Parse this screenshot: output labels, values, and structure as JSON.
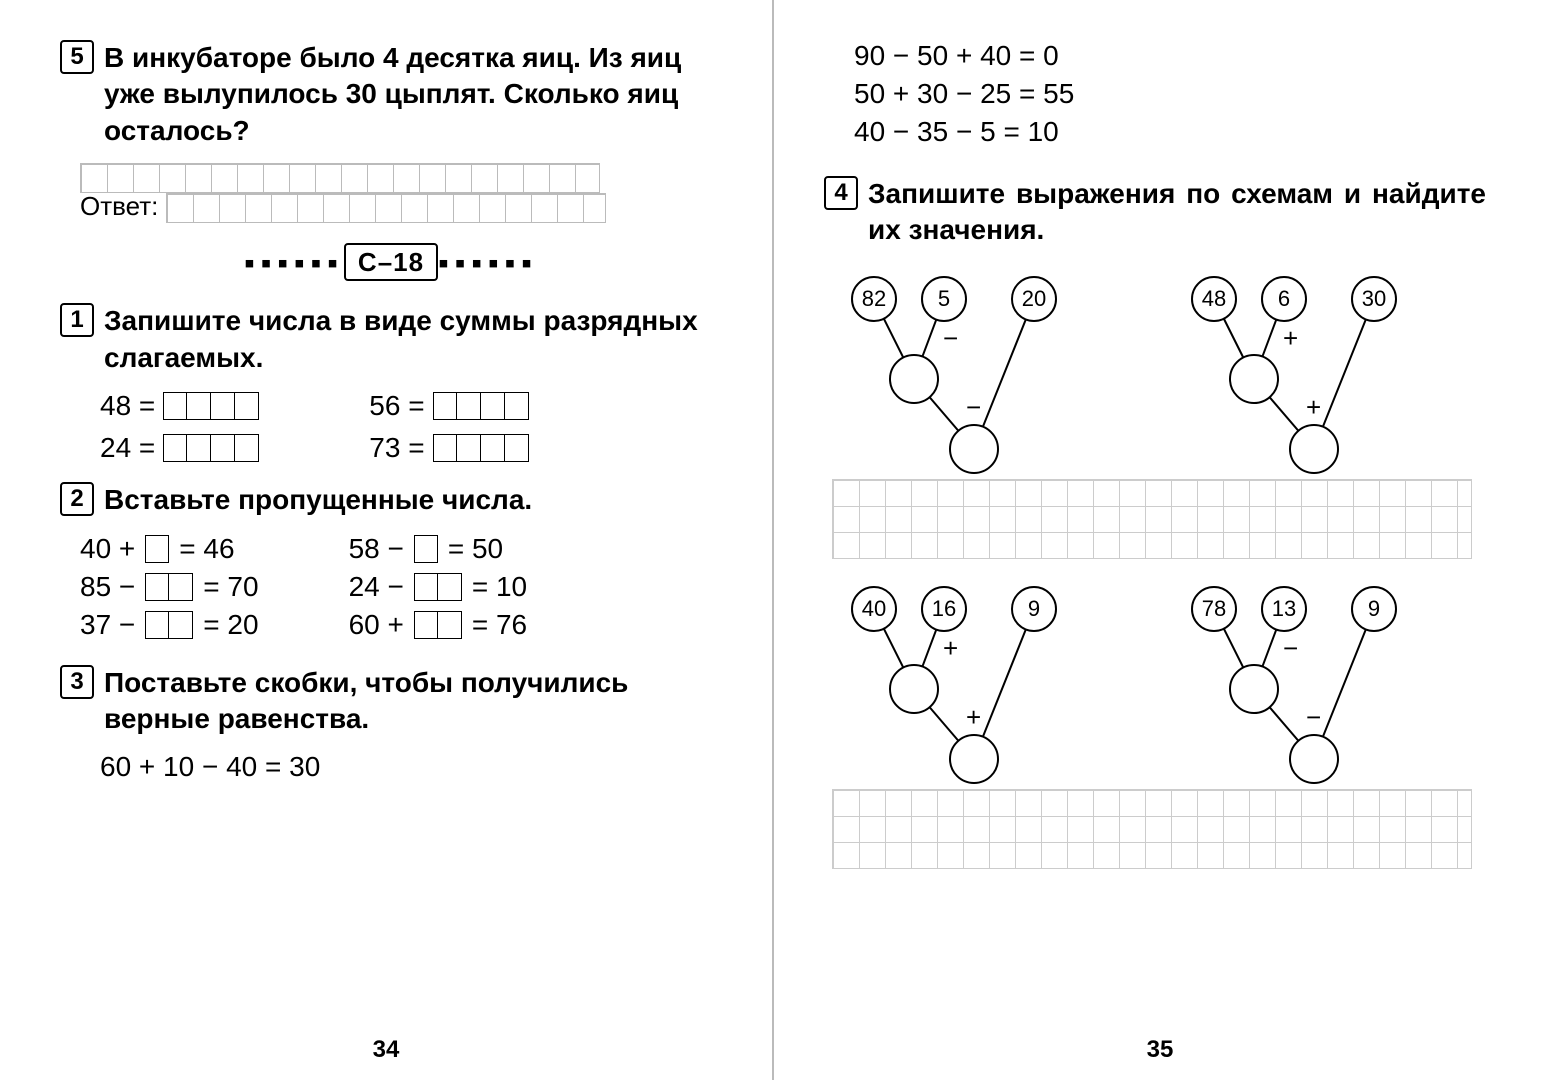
{
  "left": {
    "task5_num": "5",
    "task5_text": "В инкубаторе было 4 десятка яиц. Из яиц уже вылупилось 30 цыплят. Сколько яиц осталось?",
    "answer_label": "Ответ:",
    "section": "С–18",
    "task1_num": "1",
    "task1_text": "Запишите числа в виде суммы разрядных слагаемых.",
    "t1": {
      "a": "48 =",
      "b": "24 =",
      "c": "56 =",
      "d": "73 ="
    },
    "task2_num": "2",
    "task2_text": "Вставьте пропущенные числа.",
    "t2": {
      "l1a": "40 +",
      "l1b": "= 46",
      "l2a": "85 −",
      "l2b": "= 70",
      "l3a": "37 −",
      "l3b": "= 20",
      "r1a": "58 −",
      "r1b": "= 50",
      "r2a": "24 −",
      "r2b": "= 10",
      "r3a": "60 +",
      "r3b": "= 76"
    },
    "task3_num": "3",
    "task3_text": "Поставьте скобки, чтобы получились верные равенства.",
    "t3_eq1": "60 + 10 − 40 = 30",
    "page_num": "34"
  },
  "right": {
    "eq1": "90 − 50 + 40 = 0",
    "eq2": "50 + 30 − 25 = 55",
    "eq3": "40 − 35 − 5 = 10",
    "task4_num": "4",
    "task4_text": "Запишите выражения по схемам и найдите их значения.",
    "schemes": [
      {
        "a": "82",
        "b": "5",
        "c": "20",
        "op1": "−",
        "op2": "−"
      },
      {
        "a": "48",
        "b": "6",
        "c": "30",
        "op1": "+",
        "op2": "+"
      },
      {
        "a": "40",
        "b": "16",
        "c": "9",
        "op1": "+",
        "op2": "+"
      },
      {
        "a": "78",
        "b": "13",
        "c": "9",
        "op1": "−",
        "op2": "−"
      }
    ],
    "page_num": "35"
  },
  "style": {
    "text_color": "#000000",
    "grid_color": "#cccccc",
    "circle_stroke": "#000000",
    "fontsize_body": 28,
    "fontsize_num": 24
  }
}
